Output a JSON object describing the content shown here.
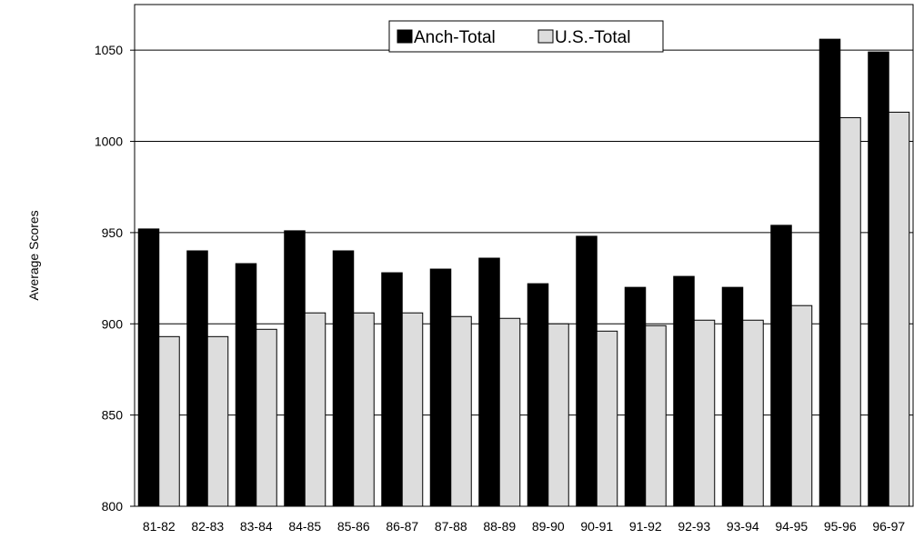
{
  "chart_data": {
    "type": "bar",
    "title": "",
    "xlabel": "",
    "ylabel": "Average Scores",
    "ylim": [
      800,
      1075
    ],
    "yticks": [
      800,
      850,
      900,
      950,
      1000,
      1050
    ],
    "grid": true,
    "legend_position": "top-center",
    "categories": [
      "81-82",
      "82-83",
      "83-84",
      "84-85",
      "85-86",
      "86-87",
      "87-88",
      "88-89",
      "89-90",
      "90-91",
      "91-92",
      "92-93",
      "93-94",
      "94-95",
      "95-96",
      "96-97"
    ],
    "series": [
      {
        "name": "Anch-Total",
        "color": "#000000",
        "values": [
          952,
          940,
          933,
          951,
          940,
          928,
          930,
          936,
          922,
          948,
          920,
          926,
          920,
          954,
          1056,
          1049
        ]
      },
      {
        "name": "U.S.-Total",
        "color": "#dddddd",
        "values": [
          893,
          893,
          897,
          906,
          906,
          906,
          904,
          903,
          900,
          896,
          899,
          902,
          902,
          910,
          1013,
          1016
        ]
      }
    ]
  }
}
